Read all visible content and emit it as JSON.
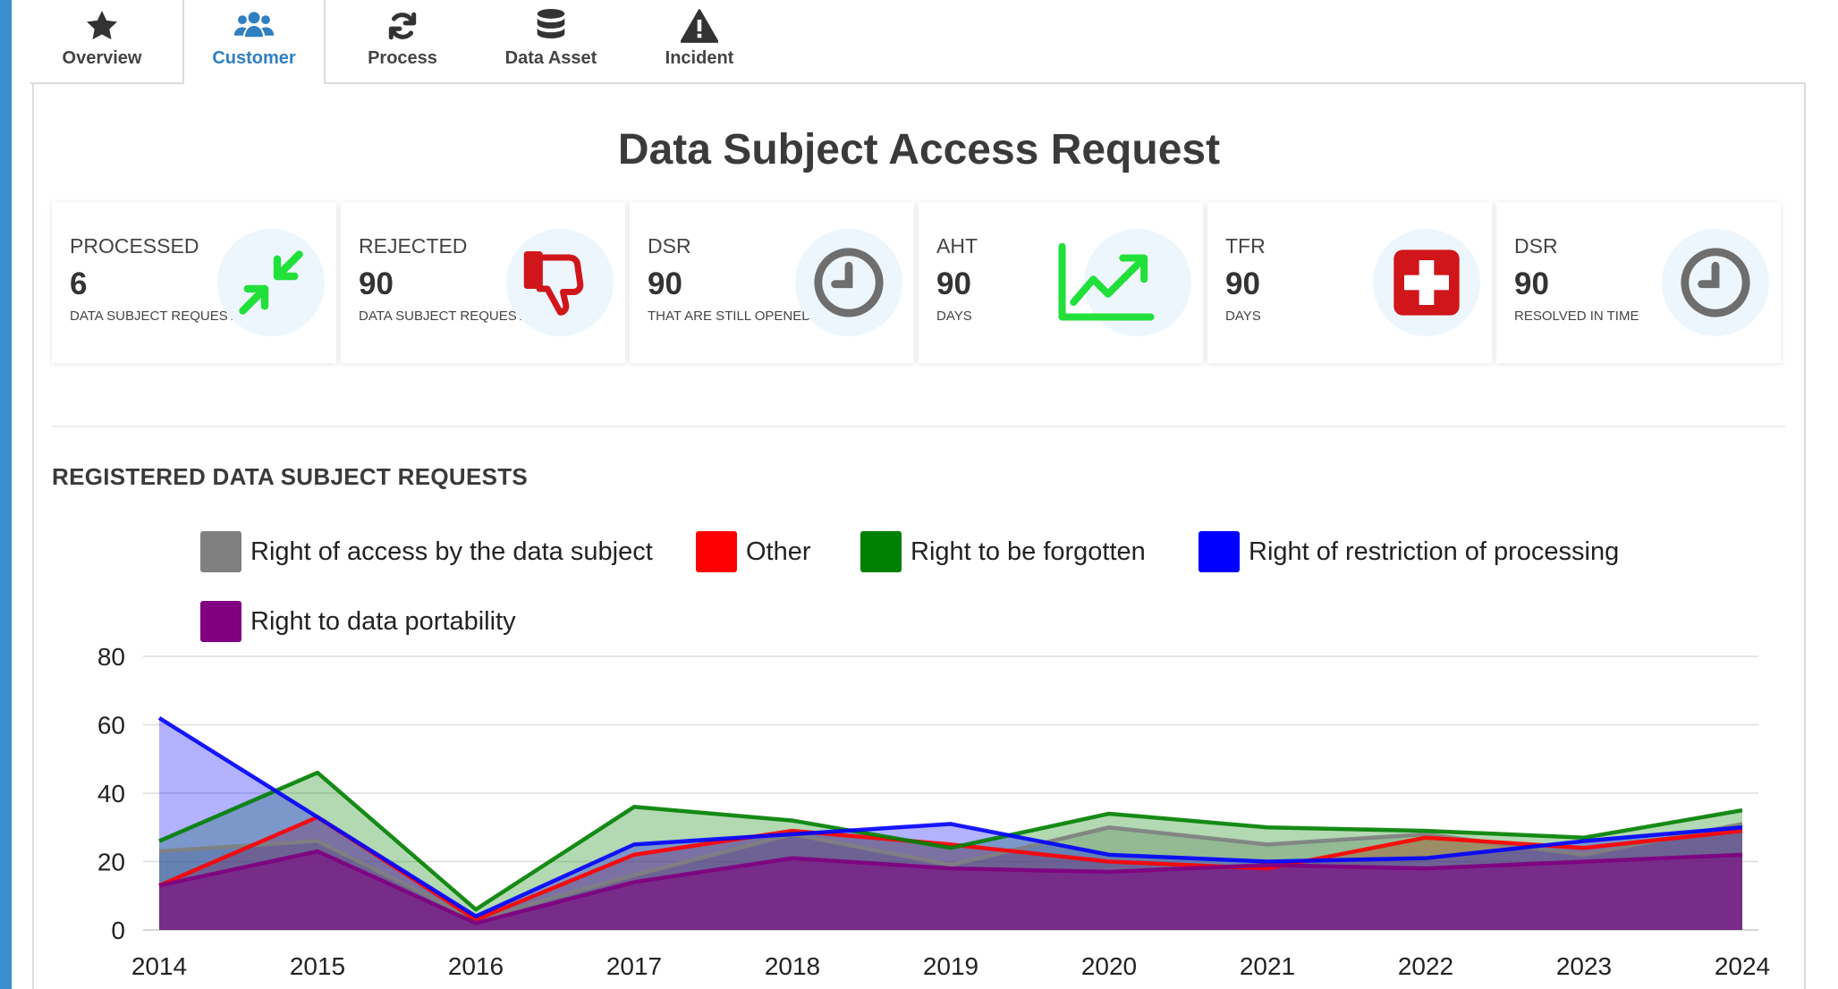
{
  "tabs": [
    {
      "label": "Overview",
      "icon": "star-icon"
    },
    {
      "label": "Customer",
      "icon": "users-icon"
    },
    {
      "label": "Process",
      "icon": "refresh-icon"
    },
    {
      "label": "Data Asset",
      "icon": "database-icon"
    },
    {
      "label": "Incident",
      "icon": "warning-icon"
    }
  ],
  "active_tab": "Customer",
  "colors": {
    "accent": "#2f7fc1",
    "sidebar": "#3a8fd1"
  },
  "page_title": "Data Subject Access Request",
  "cards": [
    {
      "label": "PROCESSED",
      "value": "6",
      "sub": "DATA SUBJECT REQUESTS",
      "icon": "compress-arrows-icon"
    },
    {
      "label": "REJECTED",
      "value": "90",
      "sub": "DATA SUBJECT REQUESTS",
      "icon": "thumbs-down-icon"
    },
    {
      "label": "DSR",
      "value": "90",
      "sub": "THAT ARE STILL OPENED",
      "icon": "clock-icon"
    },
    {
      "label": "AHT",
      "value": "90",
      "sub": "DAYS",
      "icon": "trend-up-icon"
    },
    {
      "label": "TFR",
      "value": "90",
      "sub": "DAYS",
      "icon": "medical-cross-icon"
    },
    {
      "label": "DSR",
      "value": "90",
      "sub": "RESOLVED IN TIME",
      "icon": "clock-icon"
    }
  ],
  "section_title": "REGISTERED DATA SUBJECT REQUESTS",
  "chart_data": {
    "type": "area",
    "title": "REGISTERED DATA SUBJECT REQUESTS",
    "x": [
      "2014",
      "2015",
      "2016",
      "2017",
      "2018",
      "2019",
      "2020",
      "2021",
      "2022",
      "2023",
      "2024"
    ],
    "ylim": [
      0,
      80
    ],
    "yticks": [
      0,
      20,
      40,
      60,
      80
    ],
    "grid": true,
    "legend_position": "top",
    "series": [
      {
        "name": "Right of access by the data subject",
        "color": "#808080",
        "values": [
          23,
          26,
          3,
          16,
          28,
          19,
          30,
          25,
          28,
          22,
          31
        ]
      },
      {
        "name": "Other",
        "color": "#ff0000",
        "values": [
          13,
          33,
          3,
          22,
          29,
          25,
          20,
          18,
          27,
          24,
          29
        ]
      },
      {
        "name": "Right to be forgotten",
        "color": "#008000",
        "values": [
          26,
          46,
          6,
          36,
          32,
          24,
          34,
          30,
          29,
          27,
          35
        ]
      },
      {
        "name": "Right of restriction of processing",
        "color": "#0000ff",
        "values": [
          62,
          33,
          4,
          25,
          28,
          31,
          22,
          20,
          21,
          26,
          30
        ]
      },
      {
        "name": "Right to data portability",
        "color": "#800080",
        "values": [
          13,
          23,
          2,
          14,
          21,
          18,
          17,
          19,
          18,
          20,
          22
        ]
      }
    ]
  }
}
